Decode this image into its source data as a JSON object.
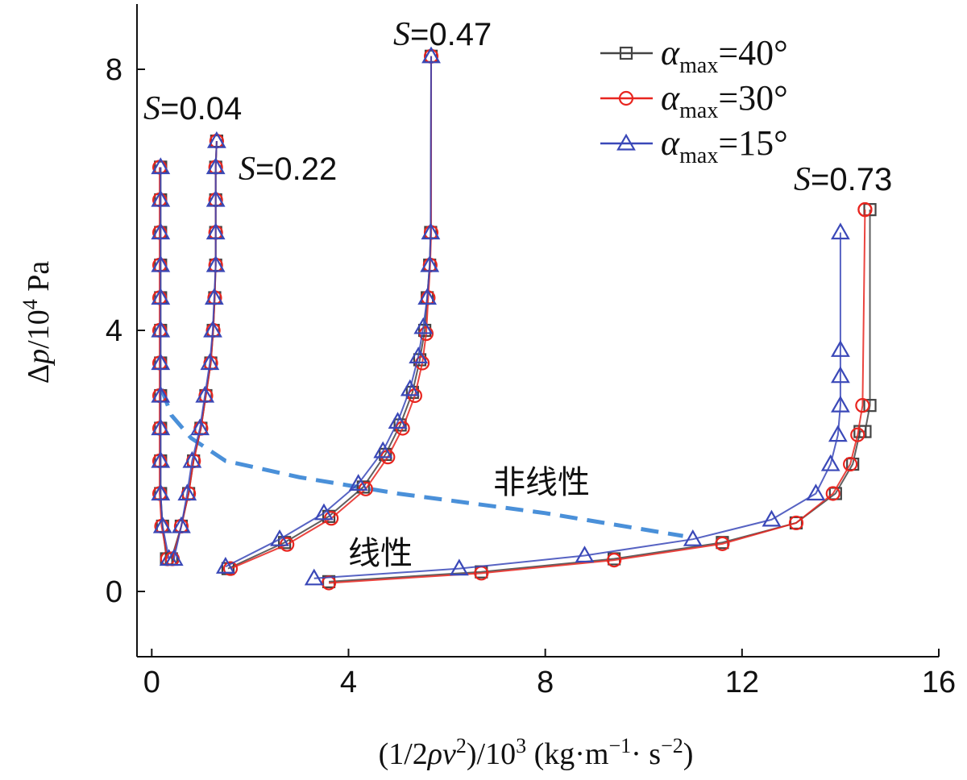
{
  "chart_data": {
    "type": "line",
    "xlabel": "(1/2ρv²)/10³ (kg·m⁻¹·s⁻²)",
    "ylabel": "Δp/10⁴ Pa",
    "xlim": [
      -0.3,
      16
    ],
    "ylim": [
      -1,
      9
    ],
    "x_ticks": [
      "0",
      "4",
      "8",
      "12",
      "16"
    ],
    "y_ticks": [
      "0",
      "4",
      "8"
    ],
    "grid": false,
    "legend_position": "top-right",
    "legend": [
      {
        "label": "α",
        "sub": "max",
        "value": "=40°",
        "color": "#444444",
        "marker": "square"
      },
      {
        "label": "α",
        "sub": "max",
        "value": "=30°",
        "color": "#e8251f",
        "marker": "circle"
      },
      {
        "label": "α",
        "sub": "max",
        "value": "=15°",
        "color": "#3a48b8",
        "marker": "triangle"
      }
    ],
    "annotations": {
      "s1": {
        "prefix": "S",
        "value": "=0.04"
      },
      "s2": {
        "prefix": "S",
        "value": "=0.22"
      },
      "s3": {
        "prefix": "S",
        "value": "=0.47"
      },
      "s4": {
        "prefix": "S",
        "value": "=0.73"
      },
      "nonlinear": "非线性",
      "linear": "线性"
    },
    "boundary": {
      "color": "#4a90d9",
      "x": [
        0.2,
        0.4,
        0.8,
        1.5,
        3.0,
        5.0,
        8.0,
        10.8
      ],
      "y": [
        3.1,
        2.7,
        2.35,
        2.0,
        1.75,
        1.5,
        1.2,
        0.85
      ]
    },
    "series": [
      {
        "name": "α_max=40°, S=0.04",
        "marker": "square",
        "color": "#444444",
        "x": [
          0.3,
          0.22,
          0.18,
          0.18,
          0.18,
          0.18,
          0.18,
          0.18,
          0.18,
          0.18,
          0.18,
          0.18,
          0.18,
          0.18
        ],
        "y": [
          0.5,
          1.0,
          1.5,
          2.0,
          2.5,
          3.0,
          3.5,
          4.0,
          4.5,
          5.0,
          5.5,
          6.0,
          6.5,
          6.5
        ]
      },
      {
        "name": "α_max=30°, S=0.04",
        "marker": "circle",
        "color": "#e8251f",
        "x": [
          0.32,
          0.2,
          0.16,
          0.16,
          0.16,
          0.16,
          0.16,
          0.16,
          0.16,
          0.16,
          0.16,
          0.16,
          0.16
        ],
        "y": [
          0.5,
          1.0,
          1.5,
          2.0,
          2.5,
          3.0,
          3.5,
          4.0,
          4.5,
          5.0,
          5.5,
          6.0,
          6.5
        ]
      },
      {
        "name": "α_max=15°, S=0.04",
        "marker": "triangle",
        "color": "#3a48b8",
        "x": [
          0.35,
          0.22,
          0.18,
          0.18,
          0.18,
          0.18,
          0.18,
          0.18,
          0.18,
          0.18,
          0.18,
          0.18,
          0.18
        ],
        "y": [
          0.5,
          1.0,
          1.5,
          2.0,
          2.5,
          3.0,
          3.5,
          4.0,
          4.5,
          5.0,
          5.5,
          6.0,
          6.5
        ]
      },
      {
        "name": "α_max=40°, S=0.22",
        "marker": "square",
        "color": "#444444",
        "x": [
          0.4,
          0.6,
          0.75,
          0.85,
          1.0,
          1.1,
          1.2,
          1.25,
          1.28,
          1.3,
          1.3,
          1.3,
          1.3,
          1.32
        ],
        "y": [
          0.5,
          1.0,
          1.5,
          2.0,
          2.5,
          3.0,
          3.5,
          4.0,
          4.5,
          5.0,
          5.5,
          6.0,
          6.5,
          6.9
        ]
      },
      {
        "name": "α_max=30°, S=0.22",
        "marker": "circle",
        "color": "#e8251f",
        "x": [
          0.42,
          0.6,
          0.75,
          0.85,
          1.0,
          1.1,
          1.2,
          1.25,
          1.28,
          1.3,
          1.3,
          1.3,
          1.3,
          1.32
        ],
        "y": [
          0.5,
          1.0,
          1.5,
          2.0,
          2.5,
          3.0,
          3.5,
          4.0,
          4.5,
          5.0,
          5.5,
          6.0,
          6.5,
          6.9
        ]
      },
      {
        "name": "α_max=15°, S=0.22",
        "marker": "triangle",
        "color": "#3a48b8",
        "x": [
          0.45,
          0.6,
          0.72,
          0.82,
          0.98,
          1.08,
          1.18,
          1.24,
          1.27,
          1.3,
          1.3,
          1.3,
          1.3,
          1.32
        ],
        "y": [
          0.5,
          1.0,
          1.5,
          2.0,
          2.5,
          3.0,
          3.5,
          4.0,
          4.5,
          5.0,
          5.5,
          6.0,
          6.5,
          6.9
        ]
      },
      {
        "name": "α_max=40°, S=0.47",
        "marker": "square",
        "color": "#444444",
        "x": [
          1.55,
          2.7,
          3.6,
          4.3,
          4.75,
          5.05,
          5.3,
          5.45,
          5.55,
          5.6,
          5.65,
          5.67,
          5.68
        ],
        "y": [
          0.35,
          0.75,
          1.15,
          1.6,
          2.1,
          2.55,
          3.05,
          3.55,
          4.0,
          4.5,
          5.0,
          5.5,
          8.2
        ]
      },
      {
        "name": "α_max=30°, S=0.47",
        "marker": "circle",
        "color": "#e8251f",
        "x": [
          1.6,
          2.75,
          3.65,
          4.35,
          4.8,
          5.1,
          5.35,
          5.5,
          5.58,
          5.62,
          5.66,
          5.68,
          5.68
        ],
        "y": [
          0.35,
          0.72,
          1.12,
          1.57,
          2.06,
          2.5,
          3.0,
          3.5,
          3.95,
          4.5,
          5.0,
          5.5,
          8.2
        ]
      },
      {
        "name": "α_max=15°, S=0.47",
        "marker": "triangle",
        "color": "#3a48b8",
        "x": [
          1.5,
          2.6,
          3.5,
          4.2,
          4.7,
          5.0,
          5.25,
          5.42,
          5.52,
          5.6,
          5.65,
          5.67,
          5.68
        ],
        "y": [
          0.38,
          0.8,
          1.2,
          1.65,
          2.15,
          2.6,
          3.1,
          3.6,
          4.05,
          4.5,
          5.0,
          5.5,
          8.2
        ]
      },
      {
        "name": "α_max=40°, S=0.73",
        "marker": "square",
        "color": "#444444",
        "x": [
          3.6,
          6.7,
          9.4,
          11.6,
          13.1,
          13.9,
          14.25,
          14.4,
          14.5,
          14.6,
          14.6
        ],
        "y": [
          0.15,
          0.3,
          0.5,
          0.75,
          1.05,
          1.5,
          1.95,
          2.45,
          2.45,
          2.85,
          5.85
        ]
      },
      {
        "name": "α_max=30°, S=0.73",
        "marker": "circle",
        "color": "#e8251f",
        "x": [
          3.6,
          6.7,
          9.4,
          11.6,
          13.1,
          13.85,
          14.2,
          14.35,
          14.45,
          14.5,
          14.5
        ],
        "y": [
          0.13,
          0.28,
          0.48,
          0.73,
          1.05,
          1.5,
          1.95,
          2.4,
          2.85,
          5.85,
          5.85
        ]
      },
      {
        "name": "α_max=15°, S=0.73",
        "marker": "triangle",
        "color": "#3a48b8",
        "x": [
          3.3,
          6.25,
          8.8,
          11.0,
          12.6,
          13.5,
          13.8,
          13.95,
          14.0,
          14.0,
          14.0,
          14.0
        ],
        "y": [
          0.2,
          0.35,
          0.55,
          0.8,
          1.1,
          1.5,
          1.95,
          2.4,
          2.85,
          3.3,
          3.7,
          5.5
        ]
      }
    ]
  }
}
